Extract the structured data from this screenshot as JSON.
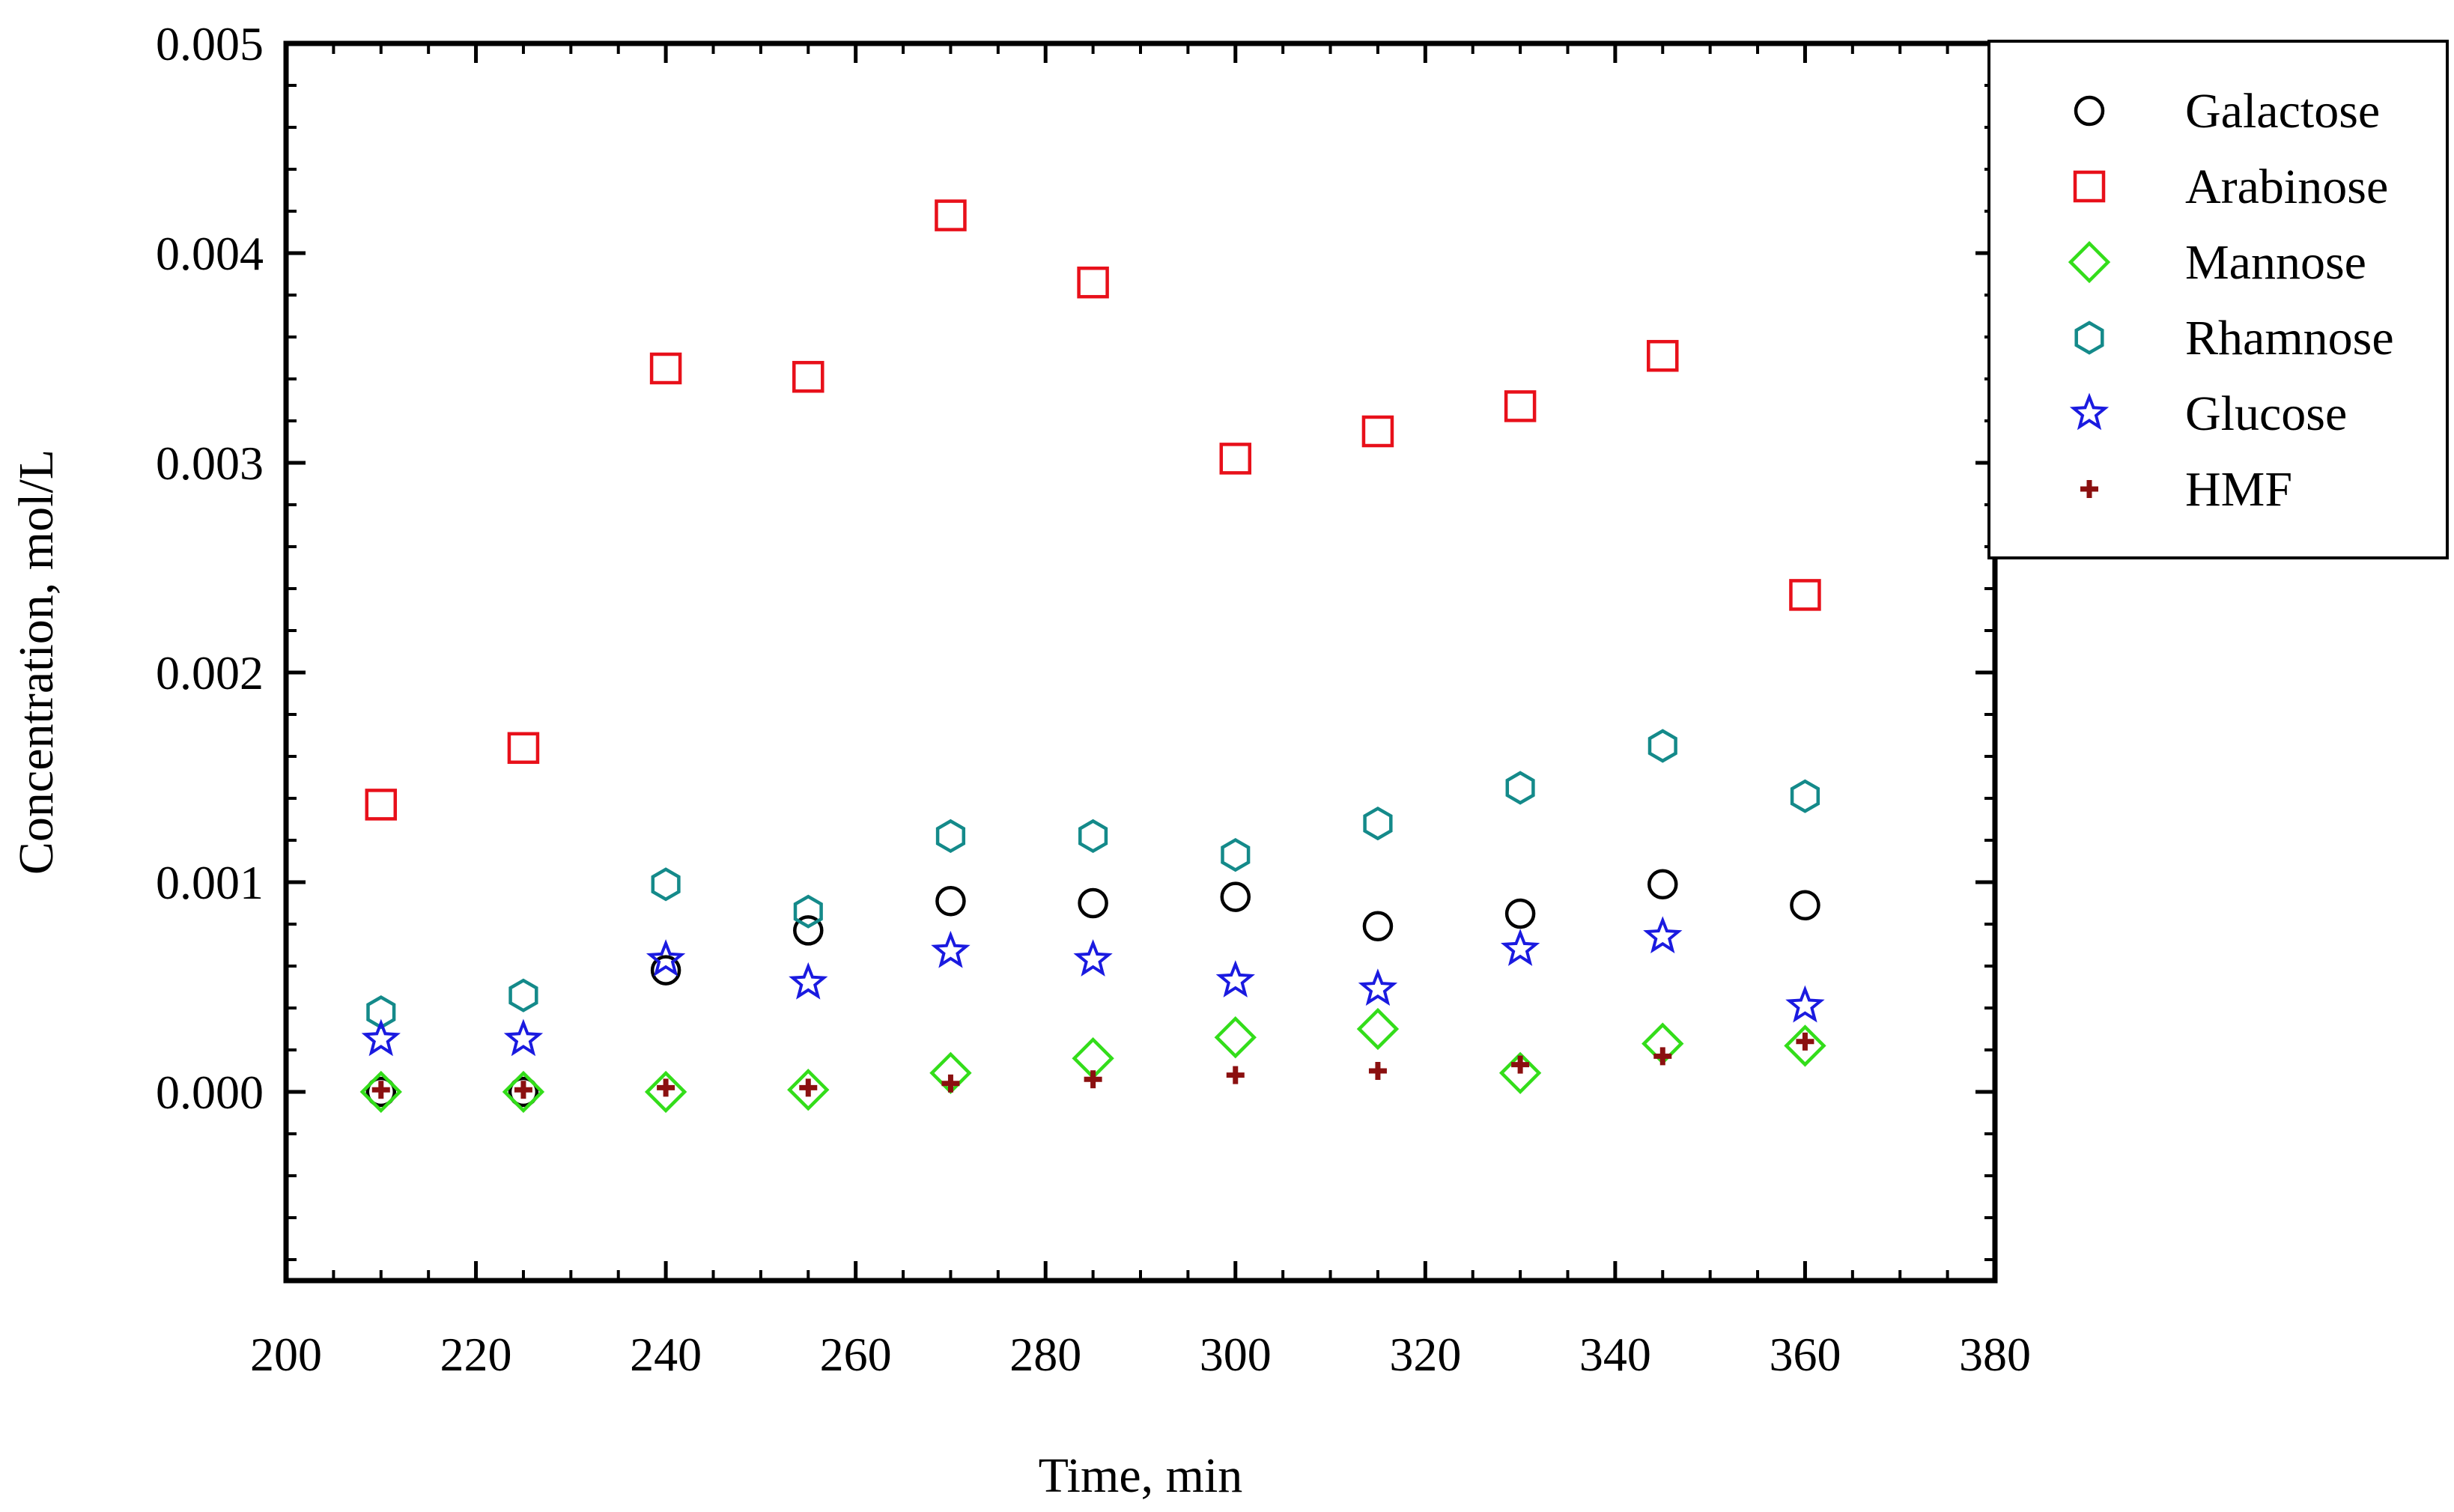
{
  "chart_data": {
    "type": "scatter",
    "title": "",
    "xlabel": "Time, min",
    "ylabel": "Concentration, mol/L",
    "xlim": [
      200,
      380
    ],
    "ylim": [
      -0.0009,
      0.005
    ],
    "x_ticks": [
      "200",
      "220",
      "240",
      "260",
      "280",
      "300",
      "320",
      "340",
      "360",
      "380"
    ],
    "y_ticks": [
      "0.000",
      "0.001",
      "0.002",
      "0.003",
      "0.004",
      "0.005"
    ],
    "grid": false,
    "legend_position": "top-right",
    "x": [
      210,
      225,
      240,
      255,
      270,
      285,
      300,
      315,
      330,
      345,
      360
    ],
    "series": [
      {
        "name": "Galactose",
        "marker": "circle",
        "color": "#000000",
        "values": [
          0.0,
          0.0,
          0.00058,
          0.00077,
          0.00091,
          0.0009,
          0.00093,
          0.00079,
          0.00085,
          0.00099,
          0.00089
        ]
      },
      {
        "name": "Arabinose",
        "marker": "square",
        "color": "#e8101a",
        "values": [
          0.00137,
          0.00164,
          0.00345,
          0.00341,
          0.00418,
          0.00386,
          0.00302,
          0.00315,
          0.00327,
          0.00351,
          0.00237
        ]
      },
      {
        "name": "Mannose",
        "marker": "diamond",
        "color": "#33dd1a",
        "values": [
          0.0,
          0.0,
          0.0,
          1e-05,
          9e-05,
          0.00016,
          0.00026,
          0.0003,
          9e-05,
          0.00023,
          0.00022
        ]
      },
      {
        "name": "Rhamnose",
        "marker": "hexagon",
        "color": "#148a8a",
        "values": [
          0.00038,
          0.00046,
          0.00099,
          0.00086,
          0.00122,
          0.00122,
          0.00113,
          0.00128,
          0.00145,
          0.00165,
          0.00141
        ]
      },
      {
        "name": "Glucose",
        "marker": "star",
        "color": "#1a1ae0",
        "values": [
          0.00025,
          0.00025,
          0.00063,
          0.00052,
          0.00067,
          0.00063,
          0.00053,
          0.00049,
          0.00068,
          0.00074,
          0.00041
        ]
      },
      {
        "name": "HMF",
        "marker": "plus",
        "color": "#8b1010",
        "values": [
          1e-05,
          1e-05,
          2e-05,
          2e-05,
          4e-05,
          6e-05,
          8e-05,
          0.0001,
          0.00013,
          0.00017,
          0.00024
        ]
      }
    ]
  }
}
